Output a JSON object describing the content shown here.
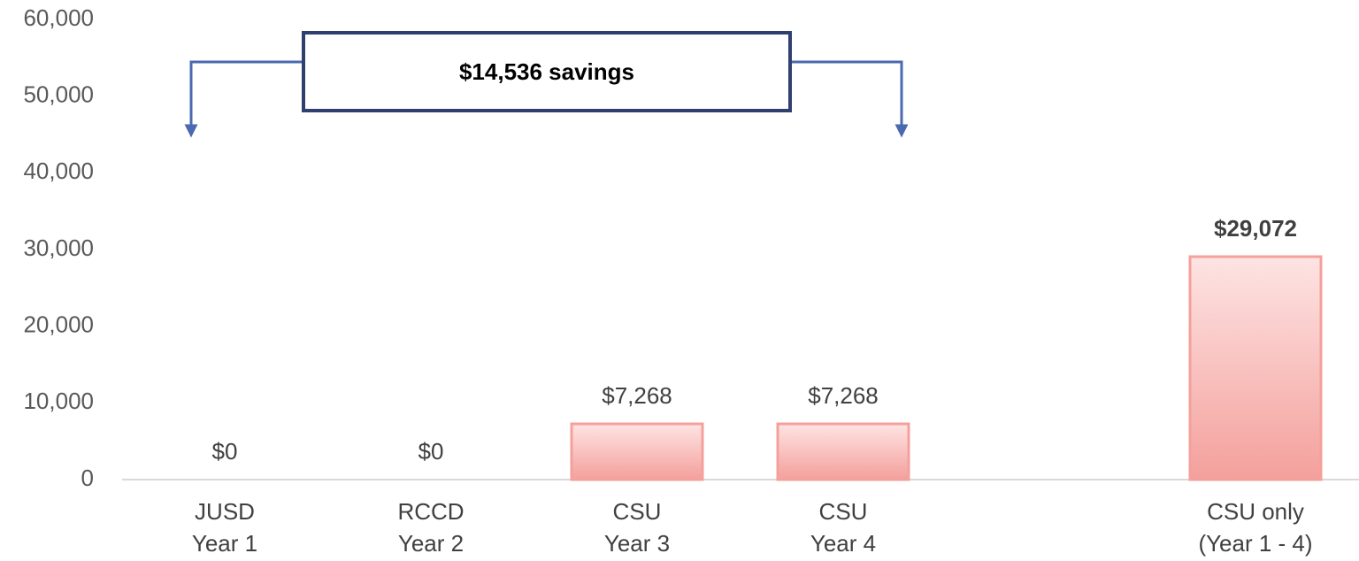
{
  "chart_data": {
    "type": "bar",
    "categories": [
      [
        "JUSD",
        "Year 1"
      ],
      [
        "RCCD",
        "Year 2"
      ],
      [
        "CSU",
        "Year 3"
      ],
      [
        "CSU",
        "Year 4"
      ],
      null,
      [
        "CSU only",
        "(Year 1 - 4)"
      ]
    ],
    "values": [
      0,
      0,
      7268,
      7268,
      null,
      29072
    ],
    "value_labels": [
      "$0",
      "$0",
      "$7,268",
      "$7,268",
      null,
      "$29,072"
    ],
    "color": "#f4a09c",
    "ylim": [
      0,
      60000
    ],
    "yticks": [
      0,
      {
        "value": 10000,
        "label": "10,000"
      },
      {
        "value": 20000,
        "label": "20,000"
      },
      {
        "value": 30000,
        "label": "30,000"
      },
      {
        "value": 40000,
        "label": "40,000"
      },
      {
        "value": 50000,
        "label": "50,000"
      },
      {
        "value": 60000,
        "label": "60,000"
      }
    ],
    "grid": false,
    "annotations": [
      "$14,536 savings"
    ]
  }
}
